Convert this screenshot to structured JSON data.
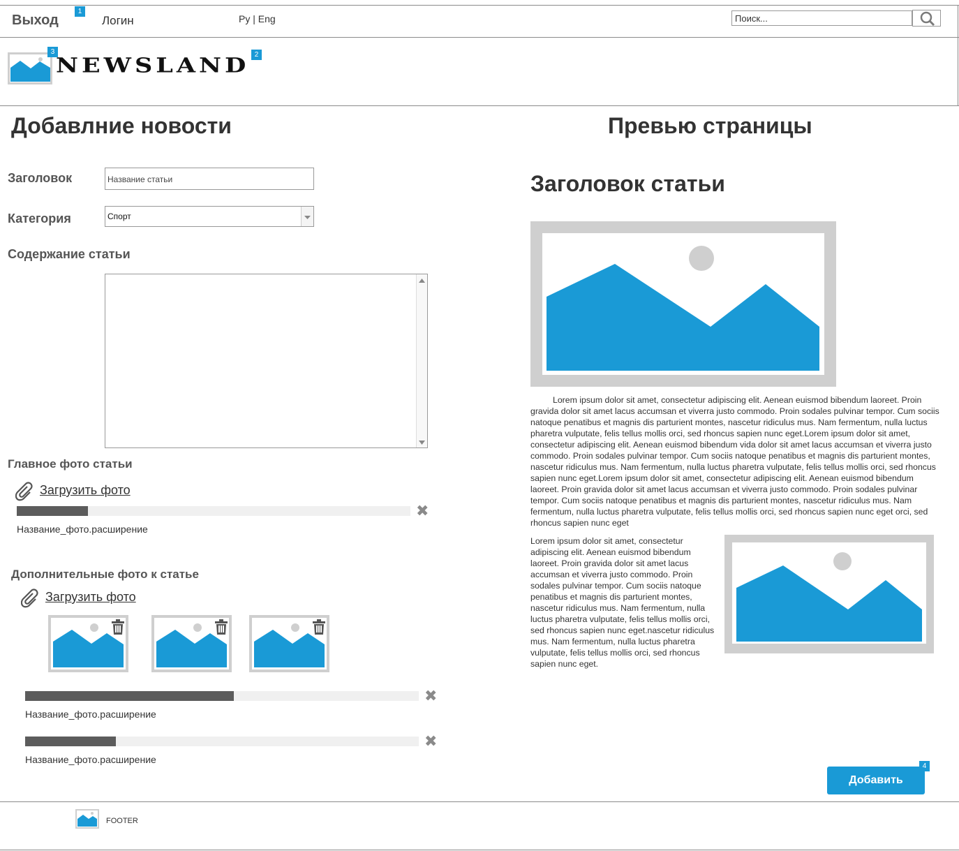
{
  "header": {
    "logout_label": "Выход",
    "login_label": "Логин",
    "language_label": "Ру | Eng",
    "search_placeholder": "Поиск...",
    "brand": "NEWSLAND",
    "markers": [
      "1",
      "2",
      "3",
      "4"
    ]
  },
  "form": {
    "title": "Добавлние новости",
    "headline_label": "Заголовок",
    "headline_placeholder": "Название статьи",
    "category_label": "Категория",
    "category_value": "Спорт",
    "content_label": "Содержание статьи",
    "main_photo_label": "Главное фото статьи",
    "upload_label": "Загрузить фото",
    "main_photo": {
      "progress": 0.18,
      "filename": "Название_фото.расширение"
    },
    "extra_photos_label": "Дополнительные фото  к статье",
    "extra_upload_label": "Загрузить фото",
    "extra_uploads": [
      {
        "progress": 0.53,
        "filename": "Название_фото.расширение"
      },
      {
        "progress": 0.23,
        "filename": "Название_фото.расширение"
      }
    ]
  },
  "preview": {
    "title": "Превью страницы",
    "article_title": "Заголовок статьи",
    "paragraph1": "Lorem ipsum dolor sit amet, consectetur adipiscing elit. Aenean euismod bibendum laoreet. Proin gravida dolor sit amet lacus accumsan et viverra justo commodo. Proin sodales pulvinar tempor. Cum sociis natoque penatibus et magnis dis parturient montes, nascetur ridiculus mus. Nam fermentum, nulla luctus pharetra vulputate, felis tellus mollis orci, sed rhoncus sapien nunc eget.Lorem ipsum dolor sit amet, consectetur adipiscing elit. Aenean euismod bibendum vida dolor sit amet lacus accumsan et viverra justo commodo. Proin sodales pulvinar tempor. Cum sociis natoque penatibus et magnis dis parturient montes, nascetur ridiculus mus. Nam fermentum, nulla luctus pharetra vulputate, felis tellus mollis orci, sed rhoncus sapien nunc eget.Lorem ipsum dolor sit amet, consectetur adipiscing elit. Aenean euismod bibendum laoreet. Proin gravida dolor sit amet lacus accumsan et viverra justo commodo. Proin sodales pulvinar tempor. Cum sociis natoque penatibus et magnis dis parturient montes, nascetur ridiculus mus. Nam fermentum, nulla luctus pharetra vulputate, felis tellus mollis orci, sed rhoncus sapien nunc eget orci, sed rhoncus sapien nunc eget",
    "paragraph2": "Lorem ipsum dolor sit amet, consectetur adipiscing elit. Aenean euismod bibendum laoreet. Proin gravida dolor sit amet lacus accumsan et viverra justo commodo. Proin sodales pulvinar tempor. Cum sociis natoque penatibus et magnis dis parturient montes, nascetur ridiculus mus. Nam fermentum, nulla luctus pharetra vulputate, felis tellus mollis orci, sed rhoncus sapien nunc eget.nascetur ridiculus mus. Nam fermentum, nulla luctus pharetra vulputate, felis tellus mollis orci, sed rhoncus sapien nunc eget."
  },
  "actions": {
    "add_label": "Добавить"
  },
  "footer": {
    "label": "FOOTER"
  },
  "colors": {
    "accent": "#1a9ad6",
    "progress_fill": "#5c5c5c",
    "image_frame": "#cfcfcf"
  }
}
